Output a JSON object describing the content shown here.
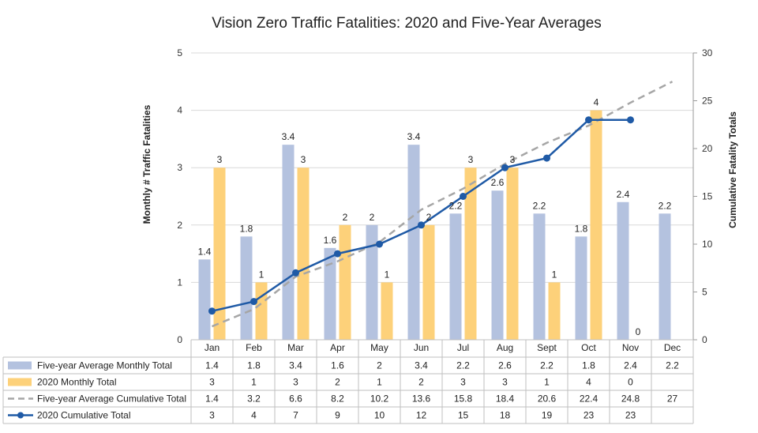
{
  "chart_data": {
    "type": "bar",
    "title": "Vision Zero Traffic Fatalities: 2020 and Five-Year Averages",
    "ylabel": "Monthly # Traffic Fatalities",
    "y2label": "Cumulative Fatality Totals",
    "ylim": [
      0,
      5
    ],
    "y2lim": [
      0,
      30
    ],
    "yticks": [
      "0",
      "1",
      "2",
      "3",
      "4",
      "5"
    ],
    "y2ticks": [
      "0",
      "5",
      "10",
      "15",
      "20",
      "25",
      "30"
    ],
    "grid": true,
    "legend": "data-table-left",
    "categories": [
      "Jan",
      "Feb",
      "Mar",
      "Apr",
      "May",
      "Jun",
      "Jul",
      "Aug",
      "Sept",
      "Oct",
      "Nov",
      "Dec"
    ],
    "series": [
      {
        "name": "Five-year Average Monthly Total",
        "type": "bar",
        "axis": "left",
        "color": "#b4c2df",
        "values": [
          1.4,
          1.8,
          3.4,
          1.6,
          2,
          3.4,
          2.2,
          2.6,
          2.2,
          1.8,
          2.4,
          2.2
        ],
        "table": [
          "1.4",
          "1.8",
          "3.4",
          "1.6",
          "2",
          "3.4",
          "2.2",
          "2.6",
          "2.2",
          "1.8",
          "2.4",
          "2.2"
        ]
      },
      {
        "name": "2020 Monthly Total",
        "type": "bar",
        "axis": "left",
        "color": "#fdd17a",
        "values": [
          3,
          1,
          3,
          2,
          1,
          2,
          3,
          3,
          1,
          4,
          0,
          null
        ],
        "table": [
          "3",
          "1",
          "3",
          "2",
          "1",
          "2",
          "3",
          "3",
          "1",
          "4",
          "0",
          ""
        ]
      },
      {
        "name": "Five-year Average Cumulative Total",
        "type": "line",
        "style": "dashed",
        "axis": "right",
        "color": "#a6a6a6",
        "values": [
          1.4,
          3.2,
          6.6,
          8.2,
          10.2,
          13.6,
          15.8,
          18.4,
          20.6,
          22.4,
          24.8,
          27
        ],
        "table": [
          "1.4",
          "3.2",
          "6.6",
          "8.2",
          "10.2",
          "13.6",
          "15.8",
          "18.4",
          "20.6",
          "22.4",
          "24.8",
          "27"
        ]
      },
      {
        "name": "2020 Cumulative Total",
        "type": "line",
        "style": "solid-markers",
        "axis": "right",
        "color": "#1f5aa6",
        "values": [
          3,
          4,
          7,
          9,
          10,
          12,
          15,
          18,
          19,
          23,
          23,
          null
        ],
        "table": [
          "3",
          "4",
          "7",
          "9",
          "10",
          "12",
          "15",
          "18",
          "19",
          "23",
          "23",
          ""
        ]
      }
    ]
  }
}
